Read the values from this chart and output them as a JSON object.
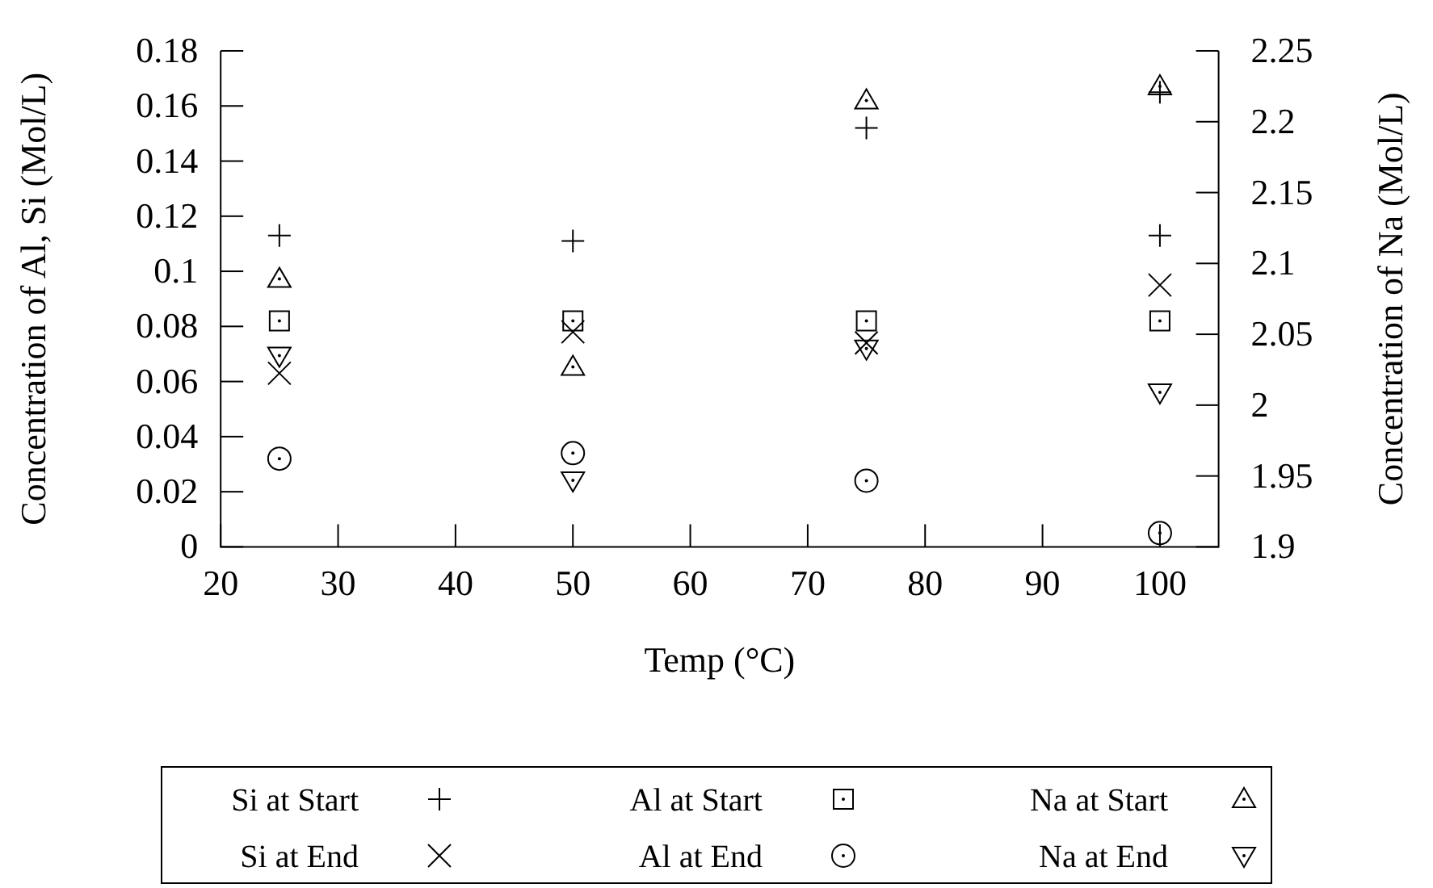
{
  "chart_data": {
    "type": "scatter",
    "xlabel": "Temp (°C)",
    "ylabel": "Concentration of Al, Si (Mol/L)",
    "y2label": "Concentration of Na (Mol/L)",
    "xlim": [
      20,
      105
    ],
    "xticks": [
      20,
      30,
      40,
      50,
      60,
      70,
      80,
      90,
      100
    ],
    "ylim": [
      0,
      0.18
    ],
    "yticks": [
      0,
      {
        "value": 0.02,
        "label": "0.02"
      },
      {
        "value": 0.04,
        "label": "0.04"
      },
      {
        "value": 0.06,
        "label": "0.06"
      },
      {
        "value": 0.08,
        "label": "0.08"
      },
      {
        "value": 0.1,
        "label": "0.1"
      },
      {
        "value": 0.12,
        "label": "0.12"
      },
      {
        "value": 0.14,
        "label": "0.14"
      },
      {
        "value": 0.16,
        "label": "0.16"
      },
      {
        "value": 0.18,
        "label": "0.18"
      }
    ],
    "y2lim": [
      1.9,
      2.25
    ],
    "y2ticks": [
      1.9,
      1.95,
      2,
      2.05,
      2.1,
      2.15,
      2.2,
      2.25
    ],
    "legend": "bottom",
    "grid": false,
    "series": [
      {
        "name": "Si at Start",
        "color": "#000000",
        "marker": "cross",
        "x": [
          25,
          50,
          75,
          100,
          100
        ],
        "values": [
          0.113,
          0.111,
          0.152,
          0.165,
          0.113
        ]
      },
      {
        "name": "Si at End",
        "color": "#000000",
        "marker": "x",
        "x": [
          25,
          50,
          75,
          100
        ],
        "values": [
          0.063,
          0.078,
          0.074,
          0.095
        ]
      },
      {
        "name": "Al at Start",
        "color": "#000000",
        "marker": "square",
        "x": [
          25,
          50,
          75,
          100
        ],
        "values": [
          0.082,
          0.082,
          0.082,
          0.082
        ]
      },
      {
        "name": "Al at End",
        "color": "#000000",
        "marker": "circle",
        "x": [
          25,
          50,
          75,
          100
        ],
        "values": [
          0.032,
          0.034,
          0.024,
          0.005
        ]
      },
      {
        "name": "Na at Start",
        "color": "#000000",
        "marker": "triangle",
        "axis": "y2",
        "x": [
          25,
          50,
          75,
          100
        ],
        "values": [
          2.089,
          2.027,
          2.215,
          2.225
        ]
      },
      {
        "name": "Na at End",
        "color": "#000000",
        "marker": "triangle-down",
        "axis": "y2",
        "x": [
          25,
          50,
          75,
          100
        ],
        "values": [
          2.035,
          1.947,
          2.04,
          2.009
        ]
      }
    ]
  }
}
